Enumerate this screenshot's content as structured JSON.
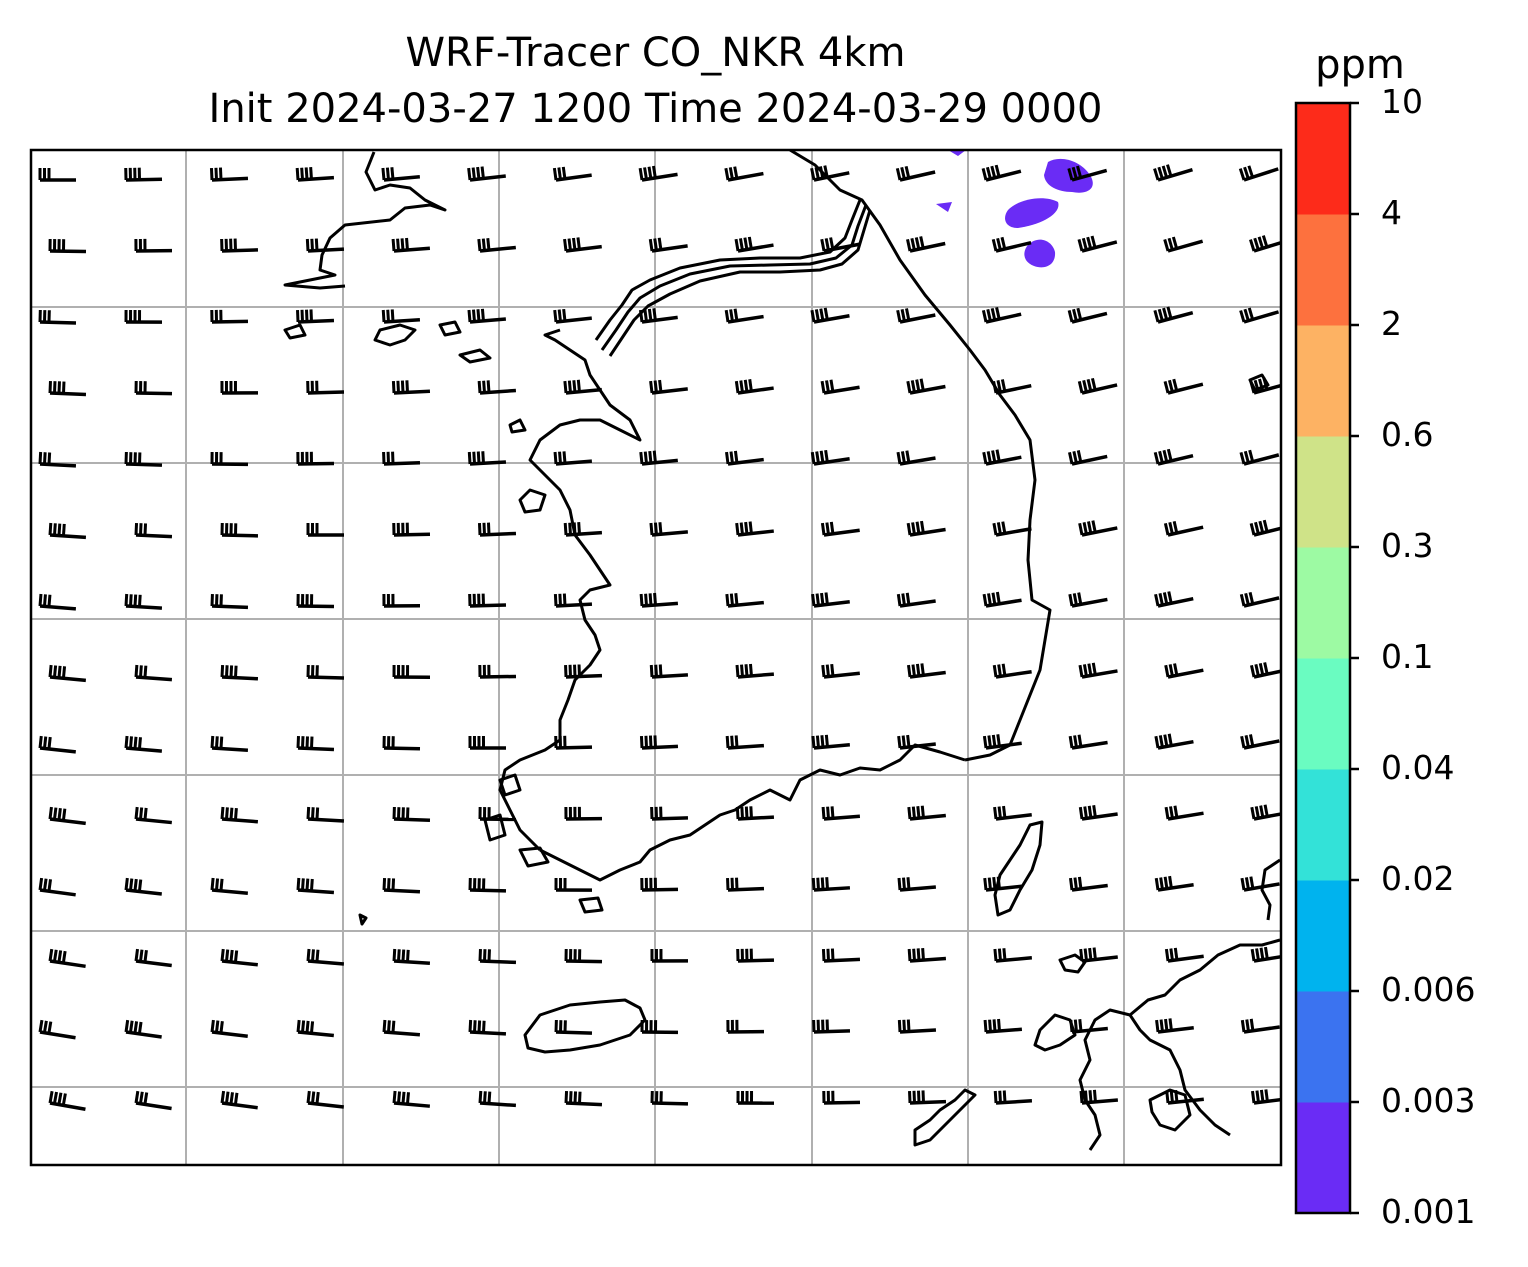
{
  "title": {
    "line1": "WRF-Tracer CO_NKR 4km",
    "line2": "Init 2024-03-27 1200 Time 2024-03-29 0000"
  },
  "colorbar": {
    "unit": "ppm",
    "ticks": [
      "0.001",
      "0.003",
      "0.006",
      "0.02",
      "0.04",
      "0.1",
      "0.3",
      "0.6",
      "2",
      "4",
      "10"
    ],
    "colors": [
      "#6a2cf5",
      "#3b73f0",
      "#00b3ee",
      "#33e2d8",
      "#6afcc1",
      "#9dfaa3",
      "#cfe388",
      "#fdb263",
      "#fd713e",
      "#fd2b1a"
    ]
  },
  "map": {
    "frame_color": "#000000",
    "gridline_color": "#b0b0b0",
    "coastline_color": "#000000",
    "wind_barbs": "uniform westerly-to-northwesterly barbs across the domain",
    "tracer_patches_color": "#6a2cf5"
  }
}
